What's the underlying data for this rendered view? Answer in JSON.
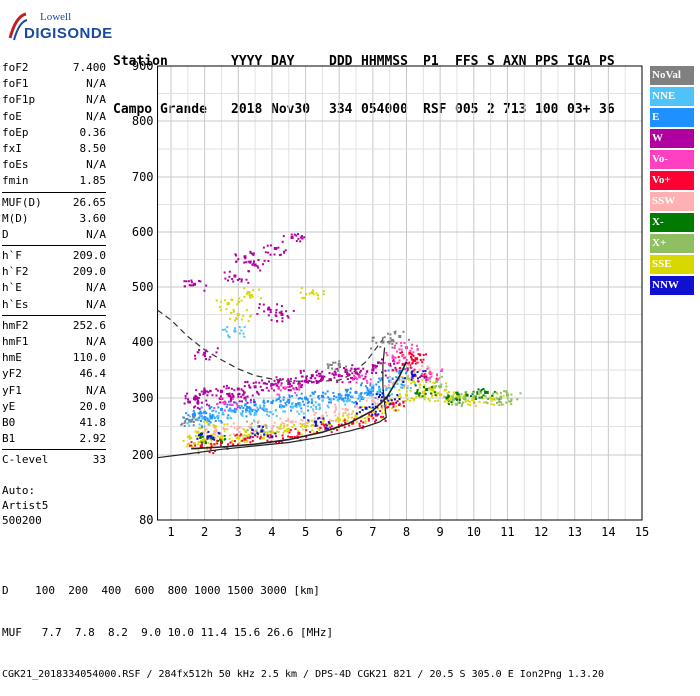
{
  "logo": {
    "line1": "Lowell",
    "line2": "DIGISONDE"
  },
  "header": {
    "labels": [
      "Station",
      "YYYY",
      "DAY",
      "DDD",
      "HHMMSS",
      "P1",
      "FFS",
      "S",
      "AXN",
      "PPS",
      "IGA",
      "PS"
    ],
    "values": [
      "Campo Grande",
      "2018",
      "Nov30",
      "334",
      "054000",
      "RSF",
      "005",
      "2",
      "713",
      "100",
      "03+",
      "36"
    ]
  },
  "params": {
    "g1": [
      [
        "foF2",
        "7.400"
      ],
      [
        "foF1",
        "N/A"
      ],
      [
        "foF1p",
        "N/A"
      ],
      [
        "foE",
        "N/A"
      ],
      [
        "foEp",
        "0.36"
      ],
      [
        "fxI",
        "8.50"
      ],
      [
        "foEs",
        "N/A"
      ],
      [
        "fmin",
        "1.85"
      ]
    ],
    "g2": [
      [
        "MUF(D)",
        "26.65"
      ],
      [
        "M(D)",
        "3.60"
      ],
      [
        "D",
        "N/A"
      ]
    ],
    "g3": [
      [
        "h`F",
        "209.0"
      ],
      [
        "h`F2",
        "209.0"
      ],
      [
        "h`E",
        "N/A"
      ],
      [
        "h`Es",
        "N/A"
      ]
    ],
    "g4": [
      [
        "hmF2",
        "252.6"
      ],
      [
        "hmF1",
        "N/A"
      ],
      [
        "hmE",
        "110.0"
      ],
      [
        "yF2",
        "46.4"
      ],
      [
        "yF1",
        "N/A"
      ],
      [
        "yE",
        "20.0"
      ],
      [
        "B0",
        "41.8"
      ],
      [
        "B1",
        "2.92"
      ]
    ],
    "g5": [
      [
        "C-level",
        "33"
      ]
    ]
  },
  "auto": {
    "l1": "Auto:",
    "l2": "Artist5",
    "l3": "500200"
  },
  "legend": [
    {
      "label": "NoVal",
      "color": "#808080"
    },
    {
      "label": "NNE",
      "color": "#4fc3f7"
    },
    {
      "label": "E",
      "color": "#1e90ff"
    },
    {
      "label": "W",
      "color": "#b000a0"
    },
    {
      "label": "Vo-",
      "color": "#ff40c0"
    },
    {
      "label": "Vo+",
      "color": "#ff0033"
    },
    {
      "label": "SSW",
      "color": "#ffb0b0"
    },
    {
      "label": "X-",
      "color": "#007a00"
    },
    {
      "label": "X+",
      "color": "#8fbf60"
    },
    {
      "label": "SSE",
      "color": "#d8d800"
    },
    {
      "label": "NNW",
      "color": "#1010d0"
    }
  ],
  "footer": {
    "line1": "D    100  200  400  600  800 1000 1500 3000 [km]",
    "line2": "MUF   7.7  7.8  8.2  9.0 10.0 11.4 15.6 26.6 [MHz]",
    "line3": "CGK21_2018334054000.RSF / 284fx512h 50 kHz 2.5 km / DPS-4D CGK21 821 / 20.5 S 305.0 E Ion2Png 1.3.20"
  },
  "chart_data": {
    "type": "scatter",
    "xlim": [
      0.6,
      15
    ],
    "ylim": [
      80,
      900
    ],
    "xticks": [
      1,
      2,
      3,
      4,
      5,
      6,
      7,
      8,
      9,
      10,
      11,
      12,
      13,
      14,
      15
    ],
    "yticks": [
      80,
      200,
      300,
      400,
      500,
      600,
      700,
      800,
      900
    ],
    "grid": true,
    "series": [
      {
        "name": "W",
        "color": "#b000a0",
        "points": [
          [
            1.7,
            300
          ],
          [
            2,
            310
          ],
          [
            2.5,
            312
          ],
          [
            3,
            316
          ],
          [
            3.5,
            320
          ],
          [
            4,
            324
          ],
          [
            4.5,
            326
          ],
          [
            5,
            330
          ],
          [
            5.5,
            335
          ],
          [
            6,
            340
          ],
          [
            6.5,
            345
          ],
          [
            7,
            350
          ],
          [
            7.5,
            360
          ],
          [
            1.8,
            292
          ],
          [
            2.8,
            300
          ],
          [
            4.2,
            330
          ],
          [
            5.2,
            340
          ],
          [
            6.2,
            350
          ],
          [
            3.2,
            300
          ],
          [
            1.7,
            505
          ],
          [
            2.9,
            520
          ],
          [
            3.2,
            555
          ],
          [
            3.5,
            540
          ],
          [
            4.1,
            570
          ],
          [
            4.6,
            590
          ],
          [
            3.9,
            460
          ],
          [
            4.3,
            450
          ],
          [
            2,
            380
          ]
        ]
      },
      {
        "name": "E",
        "color": "#1e90ff",
        "points": [
          [
            1.7,
            270
          ],
          [
            2,
            275
          ],
          [
            2.5,
            280
          ],
          [
            3,
            285
          ],
          [
            3.5,
            288
          ],
          [
            4,
            292
          ],
          [
            4.5,
            296
          ],
          [
            5,
            300
          ],
          [
            5.5,
            303
          ],
          [
            6,
            306
          ],
          [
            6.5,
            310
          ],
          [
            7,
            318
          ],
          [
            7.5,
            330
          ],
          [
            7.8,
            345
          ],
          [
            2.2,
            265
          ],
          [
            3.4,
            278
          ],
          [
            4.8,
            290
          ],
          [
            6.1,
            298
          ],
          [
            6.9,
            308
          ]
        ]
      },
      {
        "name": "NNE",
        "color": "#4fc3f7",
        "points": [
          [
            1.8,
            262
          ],
          [
            2.4,
            268
          ],
          [
            3.1,
            272
          ],
          [
            3.8,
            278
          ],
          [
            4.6,
            284
          ],
          [
            5.4,
            288
          ],
          [
            6.3,
            296
          ],
          [
            7.2,
            315
          ],
          [
            7.9,
            330
          ],
          [
            2.9,
            420
          ]
        ]
      },
      {
        "name": "SSE",
        "color": "#d8d800",
        "points": [
          [
            1.7,
            220
          ],
          [
            2,
            225
          ],
          [
            2.5,
            228
          ],
          [
            3,
            232
          ],
          [
            3.5,
            236
          ],
          [
            4,
            240
          ],
          [
            4.5,
            245
          ],
          [
            5,
            250
          ],
          [
            5.5,
            256
          ],
          [
            6,
            262
          ],
          [
            6.5,
            268
          ],
          [
            7,
            276
          ],
          [
            7.5,
            290
          ],
          [
            8,
            305
          ],
          [
            8.5,
            310
          ],
          [
            9,
            306
          ],
          [
            9.5,
            302
          ],
          [
            10,
            298
          ],
          [
            10.5,
            300
          ],
          [
            8.2,
            330
          ],
          [
            8.8,
            320
          ],
          [
            3,
            450
          ],
          [
            2.7,
            470
          ],
          [
            3.3,
            490
          ],
          [
            5.2,
            490
          ],
          [
            1.8,
            240
          ],
          [
            2.3,
            250
          ]
        ]
      },
      {
        "name": "Vo+",
        "color": "#ff0033",
        "points": [
          [
            1.9,
            215
          ],
          [
            2.5,
            222
          ],
          [
            3.2,
            228
          ],
          [
            4,
            232
          ],
          [
            4.8,
            238
          ],
          [
            5.6,
            246
          ],
          [
            6.4,
            256
          ],
          [
            7.1,
            270
          ],
          [
            7.6,
            290
          ],
          [
            7.9,
            360
          ],
          [
            8.1,
            380
          ],
          [
            8.3,
            370
          ],
          [
            8.5,
            340
          ]
        ]
      },
      {
        "name": "SSW",
        "color": "#ffb0b0",
        "points": [
          [
            2.3,
            240
          ],
          [
            3,
            248
          ],
          [
            3.8,
            252
          ],
          [
            4.6,
            258
          ],
          [
            5.5,
            268
          ],
          [
            6.2,
            280
          ],
          [
            7,
            295
          ],
          [
            7.7,
            330
          ],
          [
            8.4,
            350
          ]
        ]
      },
      {
        "name": "X-",
        "color": "#007a00",
        "points": [
          [
            9.2,
            300
          ],
          [
            9.8,
            305
          ],
          [
            10.4,
            310
          ],
          [
            8.6,
            315
          ],
          [
            2.2,
            230
          ]
        ]
      },
      {
        "name": "X+",
        "color": "#8fbf60",
        "points": [
          [
            9.4,
            298
          ],
          [
            10,
            302
          ],
          [
            10.8,
            300
          ],
          [
            11,
            305
          ],
          [
            8.9,
            330
          ],
          [
            3.6,
            250
          ]
        ]
      },
      {
        "name": "NNW",
        "color": "#1010d0",
        "points": [
          [
            2.1,
            232
          ],
          [
            3.7,
            242
          ],
          [
            5.3,
            258
          ],
          [
            6.8,
            282
          ],
          [
            7.4,
            300
          ],
          [
            8.2,
            340
          ]
        ]
      },
      {
        "name": "Vo-",
        "color": "#ff40c0",
        "points": [
          [
            2.6,
            290
          ],
          [
            4.4,
            318
          ],
          [
            6.6,
            338
          ],
          [
            7.6,
            372
          ],
          [
            8,
            390
          ],
          [
            8.7,
            345
          ]
        ]
      },
      {
        "name": "NoVal",
        "color": "#808080",
        "points": [
          [
            1.6,
            260
          ],
          [
            7.3,
            400
          ],
          [
            7.8,
            410
          ],
          [
            6,
            360
          ]
        ]
      }
    ],
    "dashed_curve": [
      [
        0.6,
        458
      ],
      [
        1,
        440
      ],
      [
        1.5,
        410
      ],
      [
        2,
        386
      ],
      [
        2.5,
        368
      ],
      [
        3,
        352
      ],
      [
        3.5,
        340
      ],
      [
        4,
        334
      ],
      [
        4.5,
        330
      ],
      [
        5,
        330
      ],
      [
        5.5,
        330
      ],
      [
        6,
        332
      ],
      [
        6.3,
        340
      ],
      [
        6.8,
        365
      ],
      [
        7.3,
        405
      ]
    ],
    "profile_curve": [
      [
        0.6,
        195
      ],
      [
        1.5,
        202
      ],
      [
        2.5,
        210
      ],
      [
        3.5,
        216
      ],
      [
        4.5,
        222
      ],
      [
        5.5,
        232
      ],
      [
        6.3,
        242
      ],
      [
        6.8,
        250
      ],
      [
        7.2,
        258
      ],
      [
        7.4,
        266
      ],
      [
        7.35,
        290
      ],
      [
        7.3,
        320
      ],
      [
        7.3,
        360
      ],
      [
        7.35,
        390
      ]
    ],
    "trace_curve": [
      [
        1.6,
        211
      ],
      [
        2.5,
        214
      ],
      [
        3.5,
        219
      ],
      [
        4.5,
        227
      ],
      [
        5.5,
        240
      ],
      [
        6.3,
        256
      ],
      [
        7,
        278
      ],
      [
        7.4,
        300
      ],
      [
        7.8,
        340
      ],
      [
        8,
        365
      ]
    ]
  }
}
